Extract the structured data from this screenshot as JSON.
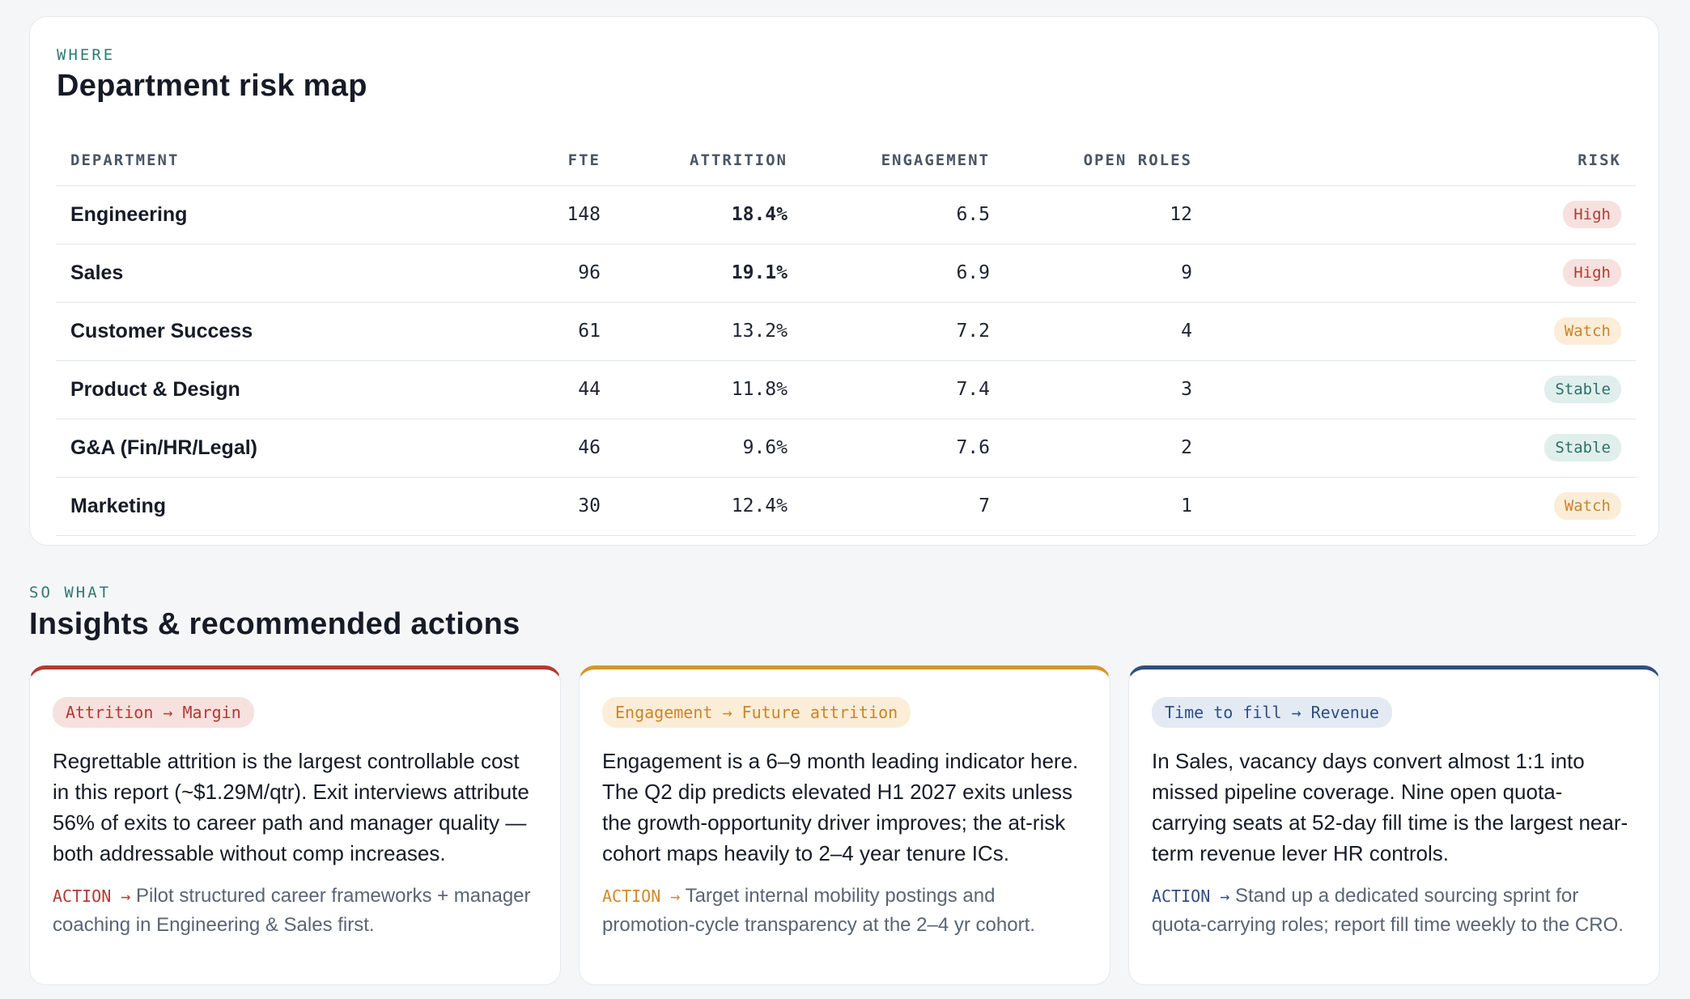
{
  "risk_map": {
    "eyebrow": "WHERE",
    "title": "Department risk map",
    "columns": [
      "DEPARTMENT",
      "FTE",
      "ATTRITION",
      "ENGAGEMENT",
      "OPEN ROLES",
      "RISK"
    ],
    "rows": [
      {
        "department": "Engineering",
        "fte": "148",
        "attrition": "18.4%",
        "engagement": "6.5",
        "open_roles": "12",
        "risk": "High"
      },
      {
        "department": "Sales",
        "fte": "96",
        "attrition": "19.1%",
        "engagement": "6.9",
        "open_roles": "9",
        "risk": "High"
      },
      {
        "department": "Customer Success",
        "fte": "61",
        "attrition": "13.2%",
        "engagement": "7.2",
        "open_roles": "4",
        "risk": "Watch"
      },
      {
        "department": "Product & Design",
        "fte": "44",
        "attrition": "11.8%",
        "engagement": "7.4",
        "open_roles": "3",
        "risk": "Stable"
      },
      {
        "department": "G&A (Fin/HR/Legal)",
        "fte": "46",
        "attrition": "9.6%",
        "engagement": "7.6",
        "open_roles": "2",
        "risk": "Stable"
      },
      {
        "department": "Marketing",
        "fte": "30",
        "attrition": "12.4%",
        "engagement": "7",
        "open_roles": "1",
        "risk": "Watch"
      }
    ]
  },
  "insights": {
    "eyebrow": "SO WHAT",
    "title": "Insights & recommended actions",
    "cards": [
      {
        "tag": "Attrition → Margin",
        "body": "Regrettable attrition is the largest controllable cost in this report (~$1.29M/qtr). Exit interviews attribute 56% of exits to career path and manager quality — both addressable without comp increases.",
        "action_label": "ACTION →",
        "action": "Pilot structured career frameworks + manager coaching in Engineering & Sales first."
      },
      {
        "tag": "Engagement → Future attrition",
        "body": "Engagement is a 6–9 month leading indicator here. The Q2 dip predicts elevated H1 2027 exits unless the growth-opportunity driver improves; the at-risk cohort maps heavily to 2–4 year tenure ICs.",
        "action_label": "ACTION →",
        "action": "Target internal mobility postings and promotion-cycle transparency at the 2–4 yr cohort."
      },
      {
        "tag": "Time to fill → Revenue",
        "body": "In Sales, vacancy days convert almost 1:1 into missed pipeline coverage. Nine open quota-carrying seats at 52-day fill time is the largest near-term revenue lever HR controls.",
        "action_label": "ACTION →",
        "action": "Stand up a dedicated sourcing sprint for quota-carrying roles; report fill time weekly to the CRO."
      }
    ]
  },
  "colors": {
    "high": "#b23a32",
    "watch": "#d08a2a",
    "stable": "#2f6f67",
    "time_to_fill": "#2f4e80",
    "eyebrow": "#2f7a72"
  }
}
